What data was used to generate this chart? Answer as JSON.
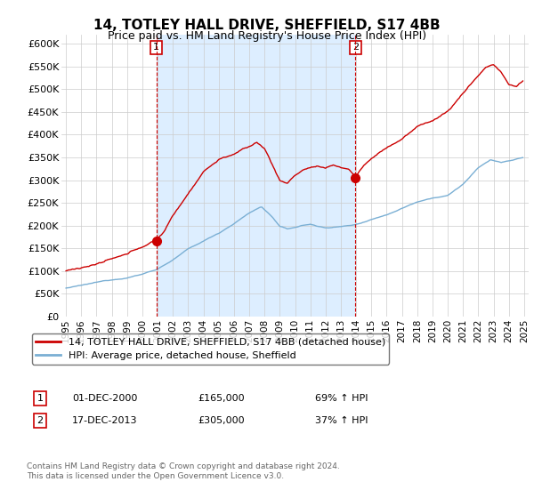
{
  "title": "14, TOTLEY HALL DRIVE, SHEFFIELD, S17 4BB",
  "subtitle": "Price paid vs. HM Land Registry's House Price Index (HPI)",
  "ylim": [
    0,
    620000
  ],
  "yticks": [
    0,
    50000,
    100000,
    150000,
    200000,
    250000,
    300000,
    350000,
    400000,
    450000,
    500000,
    550000,
    600000
  ],
  "ytick_labels": [
    "£0",
    "£50K",
    "£100K",
    "£150K",
    "£200K",
    "£250K",
    "£300K",
    "£350K",
    "£400K",
    "£450K",
    "£500K",
    "£550K",
    "£600K"
  ],
  "house_color": "#cc0000",
  "hpi_color": "#7aafd4",
  "shade_color": "#ddeeff",
  "legend_house": "14, TOTLEY HALL DRIVE, SHEFFIELD, S17 4BB (detached house)",
  "legend_hpi": "HPI: Average price, detached house, Sheffield",
  "transaction1_date": 2000.92,
  "transaction1_price": 165000,
  "transaction2_date": 2013.96,
  "transaction2_price": 305000,
  "footer1": "Contains HM Land Registry data © Crown copyright and database right 2024.",
  "footer2": "This data is licensed under the Open Government Licence v3.0.",
  "note1_date": "01-DEC-2000",
  "note1_price": "£165,000",
  "note1_pct": "69% ↑ HPI",
  "note2_date": "17-DEC-2013",
  "note2_price": "£305,000",
  "note2_pct": "37% ↑ HPI"
}
